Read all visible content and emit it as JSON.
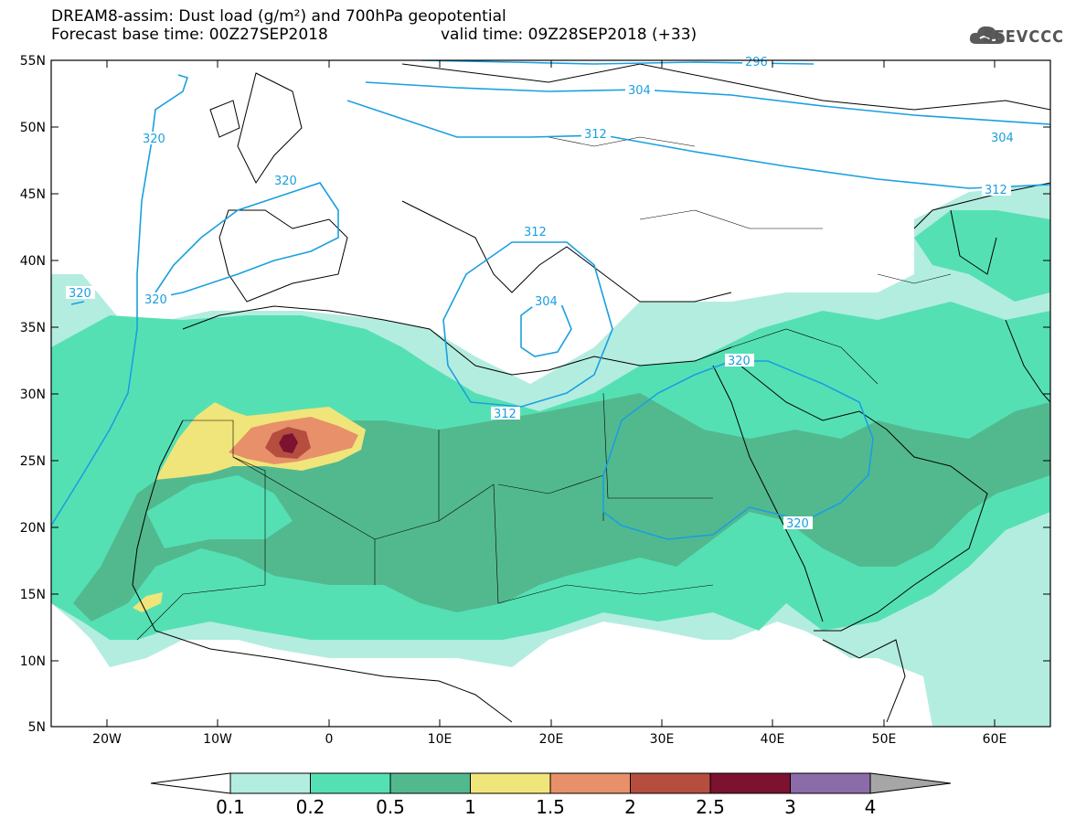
{
  "title": {
    "line1": "DREAM8-assim: Dust load (g/m²) and 700hPa geopotential",
    "line2": "Forecast base time: 00Z27SEP2018",
    "valid": "valid time: 09Z28SEP2018 (+33)"
  },
  "logo": {
    "text": "SEEVCCC",
    "icon": "cloud-logo-icon"
  },
  "map": {
    "lat_labels": [
      "55N",
      "50N",
      "45N",
      "40N",
      "35N",
      "30N",
      "25N",
      "20N",
      "15N",
      "10N",
      "5N"
    ],
    "lon_labels": [
      "20W",
      "10W",
      "0",
      "10E",
      "20E",
      "30E",
      "40E",
      "50E",
      "60E"
    ],
    "contour_labels": [
      "296",
      "304",
      "312",
      "304",
      "312",
      "320",
      "320",
      "320",
      "320",
      "312",
      "304",
      "312",
      "320",
      "320"
    ]
  },
  "legend": {
    "colors": [
      "#b3ede0",
      "#55e0b4",
      "#52b98f",
      "#f0e57a",
      "#e8906a",
      "#b54e3f",
      "#7d1230",
      "#8b6ba8"
    ],
    "labels": [
      "0.1",
      "0.2",
      "0.5",
      "1",
      "1.5",
      "2",
      "2.5",
      "3",
      "4"
    ],
    "under_color": "#ffffff",
    "over_color": "#a6a6a6"
  }
}
